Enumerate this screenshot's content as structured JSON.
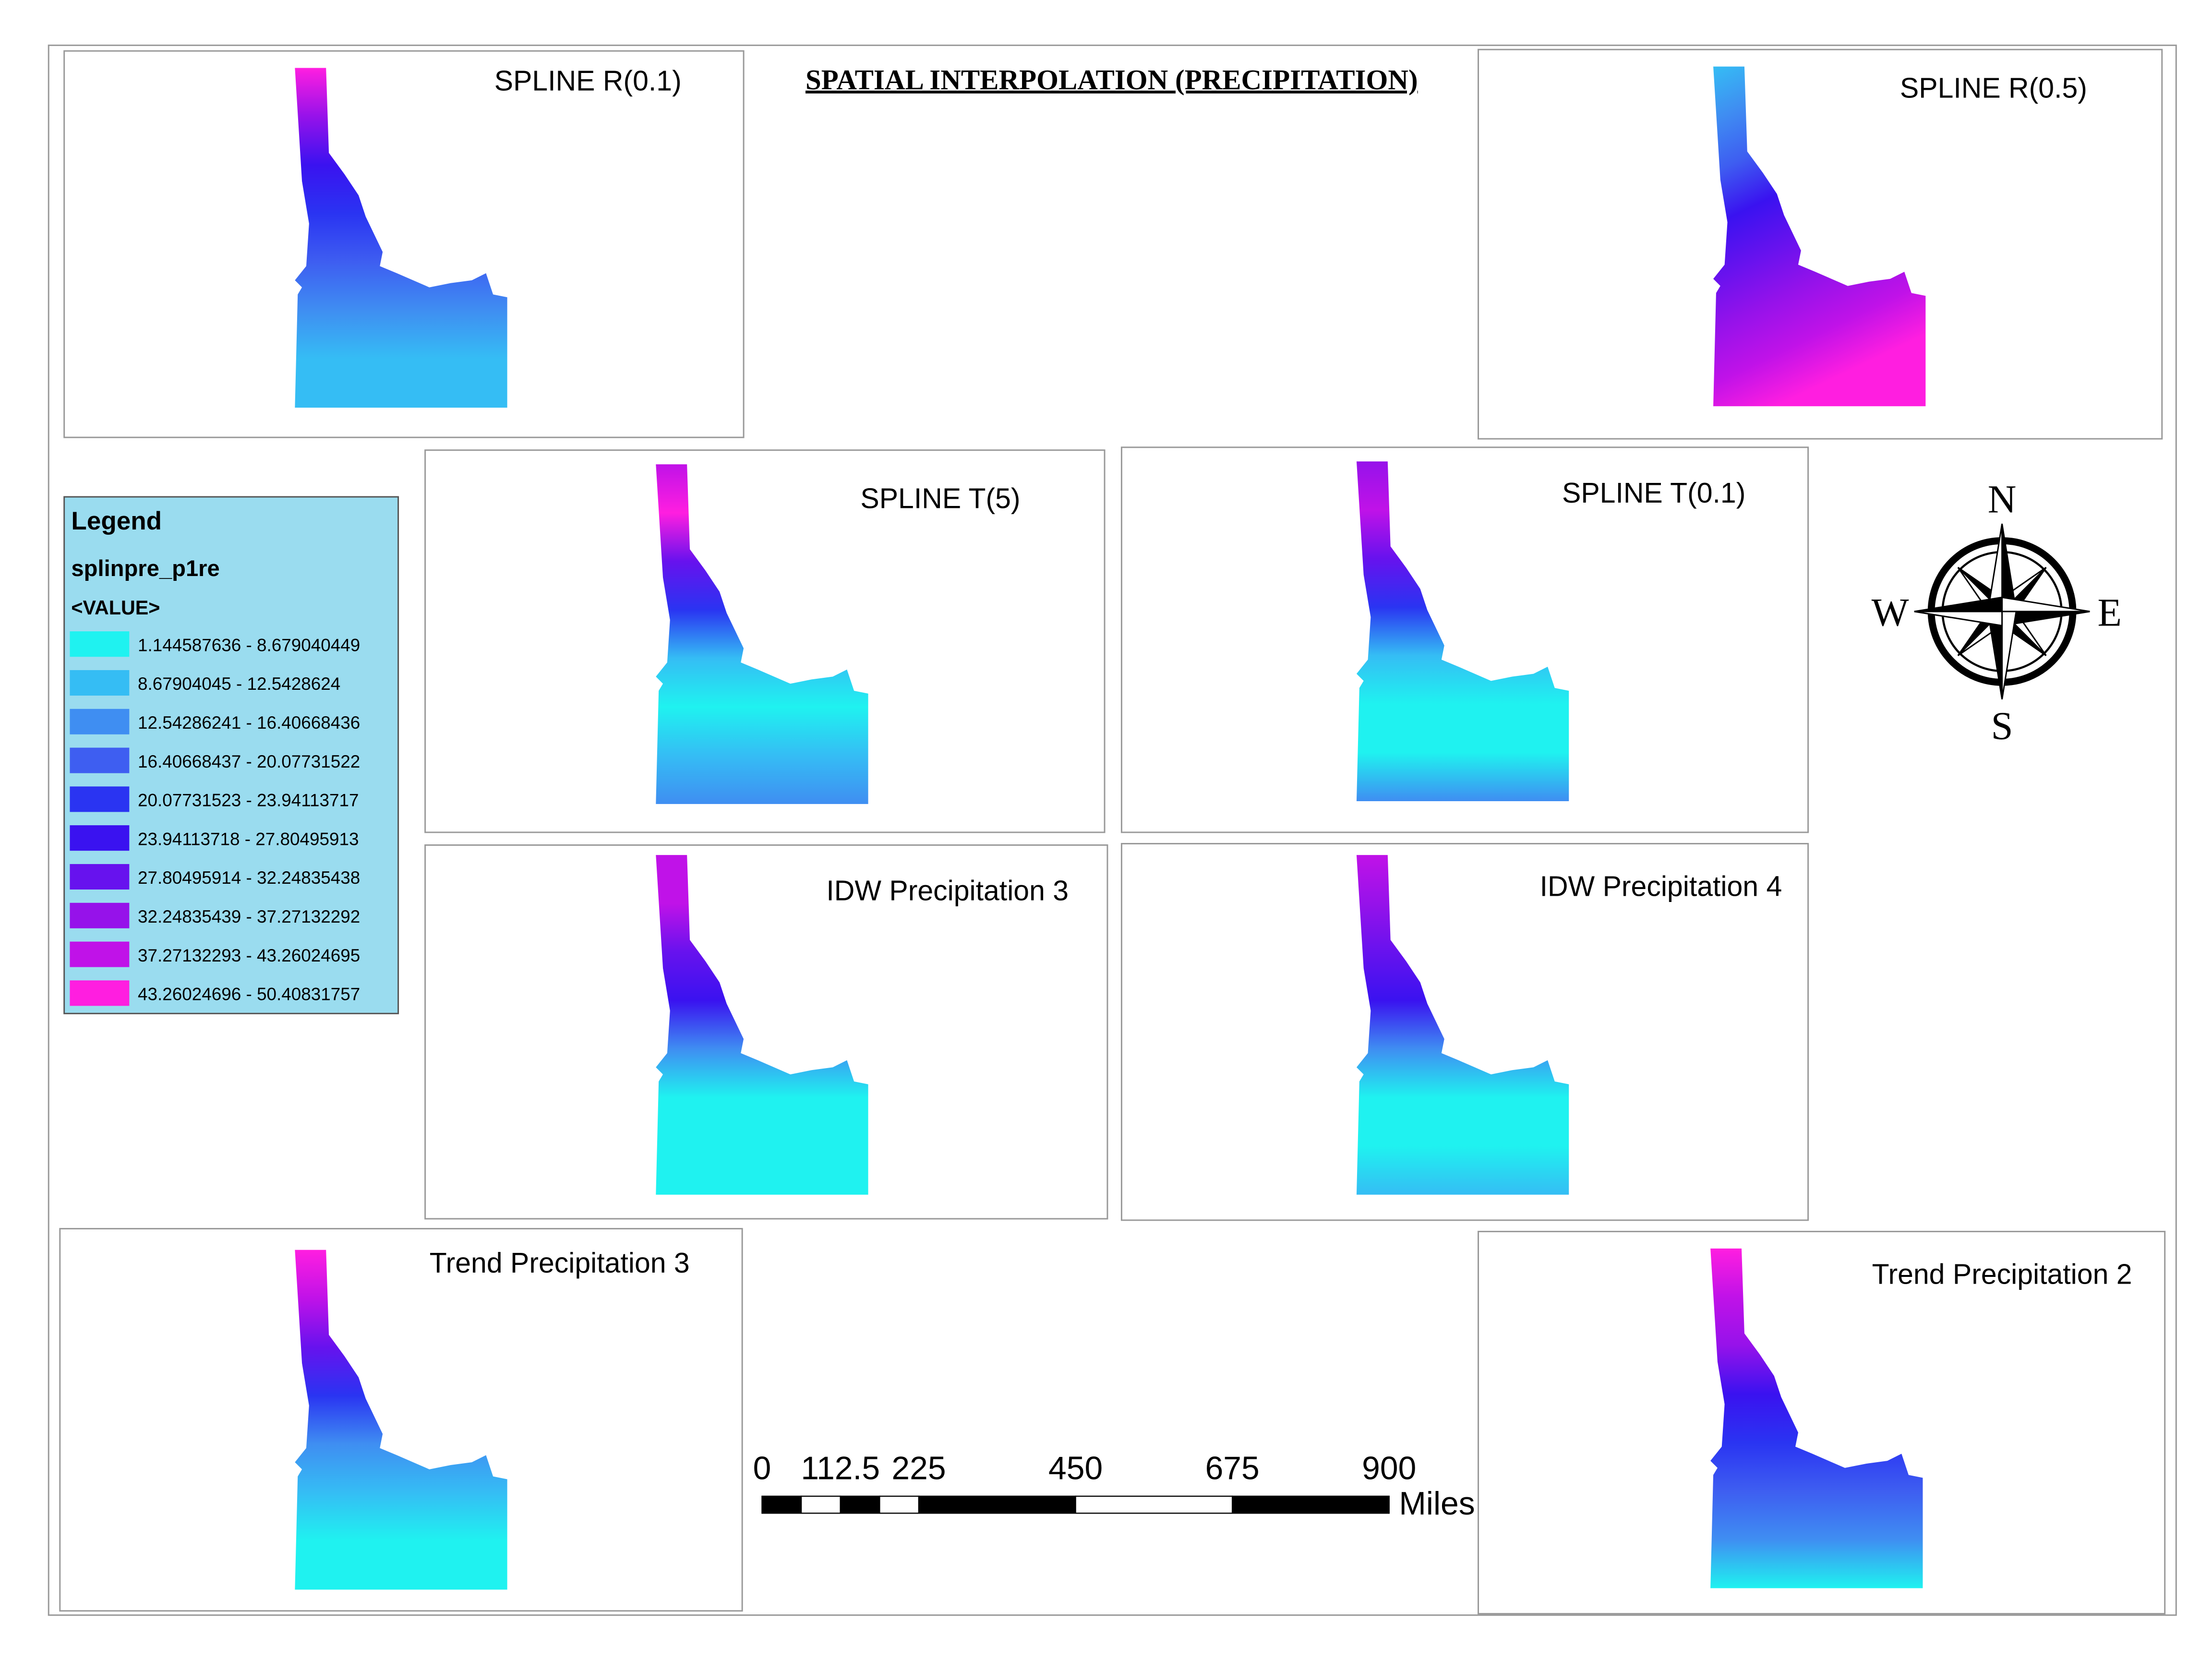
{
  "title": "SPATIAL INTERPOLATION (PRECIPITATION)",
  "panels": [
    {
      "title": "SPLINE R(0.1)"
    },
    {
      "title": "SPLINE R(0.5)"
    },
    {
      "title": "SPLINE T(5)"
    },
    {
      "title": "SPLINE T(0.1)"
    },
    {
      "title": "IDW Precipitation 3"
    },
    {
      "title": "IDW Precipitation 4"
    },
    {
      "title": "Trend Precipitation 3"
    },
    {
      "title": "Trend Precipitation 2"
    }
  ],
  "legend": {
    "title": "Legend",
    "layer": "splinpre_p1re",
    "field": "<VALUE>",
    "classes": [
      {
        "label": "1.144587636 - 8.679040449",
        "color": "#1ff2f0"
      },
      {
        "label": "8.67904045 - 12.5428624",
        "color": "#35bdf4"
      },
      {
        "label": "12.54286241 - 16.40668436",
        "color": "#3f8ef2"
      },
      {
        "label": "16.40668437 - 20.07731522",
        "color": "#3e5ef1"
      },
      {
        "label": "20.07731523 - 23.94113717",
        "color": "#2a34f2"
      },
      {
        "label": "23.94113718 - 27.80495913",
        "color": "#3a12f0"
      },
      {
        "label": "27.80495914 - 32.24835438",
        "color": "#6712ee"
      },
      {
        "label": "32.24835439 - 37.27132292",
        "color": "#9612ea"
      },
      {
        "label": "37.27132293 - 43.26024695",
        "color": "#c012e8"
      },
      {
        "label": "43.26024696 - 50.40831757",
        "color": "#ff1ee0"
      }
    ]
  },
  "scale_bar": {
    "ticks": [
      0,
      112.5,
      225,
      450,
      675,
      900
    ],
    "unit": "Miles"
  },
  "compass": {
    "n": "N",
    "w": "W",
    "e": "E",
    "s": "S"
  }
}
